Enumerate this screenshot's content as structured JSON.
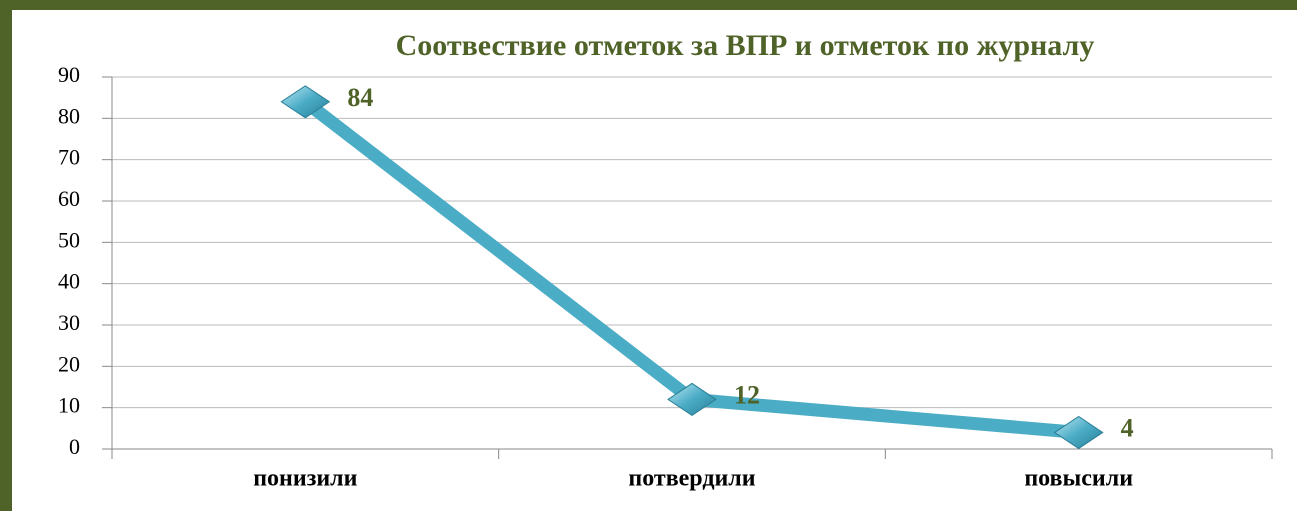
{
  "chart_data": {
    "type": "line",
    "title": "Соотвествие отметок за ВПР и отметок по журналу",
    "categories": [
      "понизили",
      "потвердили",
      "повысили"
    ],
    "values": [
      84,
      12,
      4
    ],
    "color": "#4bacc6",
    "ylim": [
      0,
      90
    ],
    "yticks": [
      0,
      10,
      20,
      30,
      40,
      50,
      60,
      70,
      80,
      90
    ],
    "grid": true
  }
}
